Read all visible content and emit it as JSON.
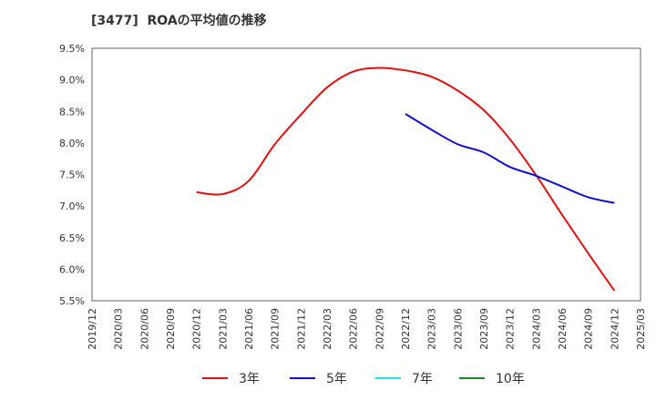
{
  "chart_data": {
    "type": "line",
    "title": "[3477]  ROAの平均値の推移",
    "xlabel": "",
    "ylabel": "",
    "ylim": [
      5.5,
      9.5
    ],
    "yticks": [
      5.5,
      6.0,
      6.5,
      7.0,
      7.5,
      8.0,
      8.5,
      9.0,
      9.5
    ],
    "ytick_labels": [
      "5.5%",
      "6.0%",
      "6.5%",
      "7.0%",
      "7.5%",
      "8.0%",
      "8.5%",
      "9.0%",
      "9.5%"
    ],
    "xticks": [
      "2019/12",
      "2020/03",
      "2020/06",
      "2020/09",
      "2020/12",
      "2021/03",
      "2021/06",
      "2021/09",
      "2021/12",
      "2022/03",
      "2022/06",
      "2022/09",
      "2022/12",
      "2023/03",
      "2023/06",
      "2023/09",
      "2023/12",
      "2024/03",
      "2024/06",
      "2024/09",
      "2024/12",
      "2025/03"
    ],
    "grid": true,
    "legend_position": "bottom",
    "series": [
      {
        "name": "3年",
        "color": "#dd1111",
        "points": [
          [
            "2020/12",
            7.22
          ],
          [
            "2021/03",
            7.19
          ],
          [
            "2021/06",
            7.4
          ],
          [
            "2021/09",
            7.98
          ],
          [
            "2021/12",
            8.45
          ],
          [
            "2022/03",
            8.88
          ],
          [
            "2022/06",
            9.13
          ],
          [
            "2022/09",
            9.19
          ],
          [
            "2022/12",
            9.15
          ],
          [
            "2023/03",
            9.05
          ],
          [
            "2023/06",
            8.83
          ],
          [
            "2023/09",
            8.52
          ],
          [
            "2023/12",
            8.06
          ],
          [
            "2024/03",
            7.49
          ],
          [
            "2024/06",
            6.86
          ],
          [
            "2024/09",
            6.25
          ],
          [
            "2024/12",
            5.66
          ]
        ]
      },
      {
        "name": "5年",
        "color": "#1111cc",
        "points": [
          [
            "2022/12",
            8.46
          ],
          [
            "2023/03",
            8.21
          ],
          [
            "2023/06",
            7.98
          ],
          [
            "2023/09",
            7.85
          ],
          [
            "2023/12",
            7.62
          ],
          [
            "2024/03",
            7.48
          ],
          [
            "2024/06",
            7.31
          ],
          [
            "2024/09",
            7.14
          ],
          [
            "2024/12",
            7.05
          ]
        ]
      },
      {
        "name": "7年",
        "color": "#22ddee",
        "points": []
      },
      {
        "name": "10年",
        "color": "#228822",
        "points": []
      }
    ]
  }
}
